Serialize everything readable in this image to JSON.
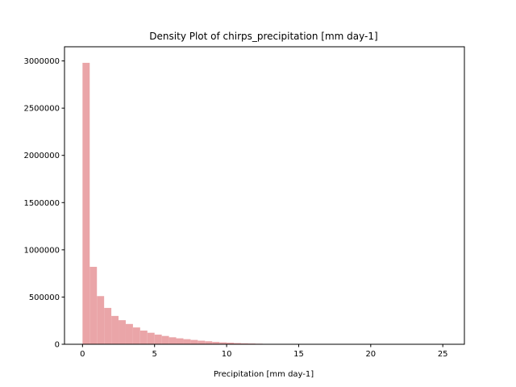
{
  "chart_data": {
    "type": "bar",
    "title": "Density Plot of chirps_precipitation [mm day-1]",
    "xlabel": "Precipitation [mm day-1]",
    "ylabel": "",
    "xlim": [
      -1.25,
      26.5
    ],
    "ylim": [
      0,
      3150000
    ],
    "xticks": [
      0,
      5,
      10,
      15,
      20,
      25
    ],
    "yticks": [
      0,
      500000,
      1000000,
      1500000,
      2000000,
      2500000,
      3000000
    ],
    "bin_start": 0,
    "bin_width": 0.5,
    "bar_color": "#eaa5a8",
    "grid": false,
    "values": [
      2980000,
      820000,
      510000,
      385000,
      300000,
      255000,
      215000,
      178000,
      145000,
      122000,
      102000,
      88000,
      74000,
      63000,
      54000,
      46000,
      38000,
      32000,
      25000,
      20000,
      17000,
      13000,
      10000,
      8000,
      6000,
      4000,
      3000,
      2000,
      1500,
      1000,
      800,
      600,
      400,
      300,
      200,
      150,
      100,
      80,
      60,
      40,
      30,
      20,
      15,
      10,
      8,
      5,
      3,
      2,
      2,
      1
    ]
  }
}
